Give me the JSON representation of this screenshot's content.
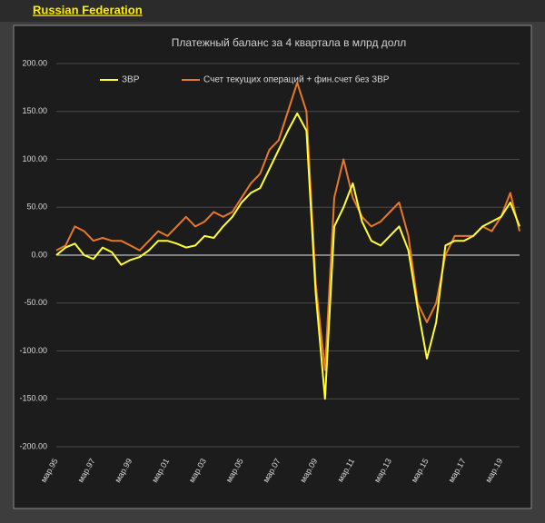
{
  "header": "Russian Federation",
  "chart_data": {
    "type": "line",
    "title": "Платежный баланс за 4 квартала в млрд долл",
    "categories": [
      "мар.95",
      null,
      null,
      null,
      "мар.97",
      null,
      null,
      null,
      "мар.99",
      null,
      null,
      null,
      "мар.01",
      null,
      null,
      null,
      "мар.03",
      null,
      null,
      null,
      "мар.05",
      null,
      null,
      null,
      "мар.07",
      null,
      null,
      null,
      "мар.09",
      null,
      null,
      null,
      "мар.11",
      null,
      null,
      null,
      "мар.13",
      null,
      null,
      null,
      "мар.15",
      null,
      null,
      null,
      "мар.17",
      null,
      null,
      null,
      "мар.19",
      null,
      null
    ],
    "series": [
      {
        "name": "ЗВР",
        "color": "#ffff33",
        "values": [
          0,
          8,
          12,
          0,
          -4,
          8,
          3,
          -10,
          -5,
          -2,
          5,
          15,
          15,
          12,
          8,
          10,
          20,
          18,
          30,
          40,
          55,
          65,
          70,
          90,
          110,
          130,
          148,
          130,
          -40,
          -150,
          30,
          50,
          75,
          35,
          15,
          10,
          20,
          30,
          5,
          -55,
          -108,
          -70,
          10,
          15,
          15,
          20,
          30,
          35,
          40,
          55,
          30
        ]
      },
      {
        "name": "Счет текущих операций + фин.счет без ЗВР",
        "color": "#e8782a",
        "values": [
          5,
          10,
          30,
          25,
          15,
          18,
          15,
          15,
          10,
          5,
          15,
          25,
          20,
          30,
          40,
          30,
          35,
          45,
          40,
          45,
          60,
          75,
          85,
          110,
          120,
          150,
          180,
          150,
          -30,
          -120,
          60,
          100,
          60,
          40,
          30,
          35,
          45,
          55,
          20,
          -50,
          -70,
          -50,
          0,
          20,
          20,
          20,
          30,
          25,
          40,
          65,
          25
        ]
      }
    ],
    "ylim": [
      -200,
      200
    ],
    "yticks": [
      {
        "value": 200,
        "label": "200.00"
      },
      {
        "value": 150,
        "label": "150.00"
      },
      {
        "value": 100,
        "label": "100.00"
      },
      {
        "value": 50,
        "label": "50.00"
      },
      {
        "value": 0,
        "label": "0.00"
      },
      {
        "value": -50,
        "label": "-50.00"
      },
      {
        "value": -100,
        "label": "-100.00"
      },
      {
        "value": -150,
        "label": "-150.00"
      },
      {
        "value": -200,
        "label": "-200.00"
      }
    ],
    "grid": true,
    "legend": "top"
  }
}
